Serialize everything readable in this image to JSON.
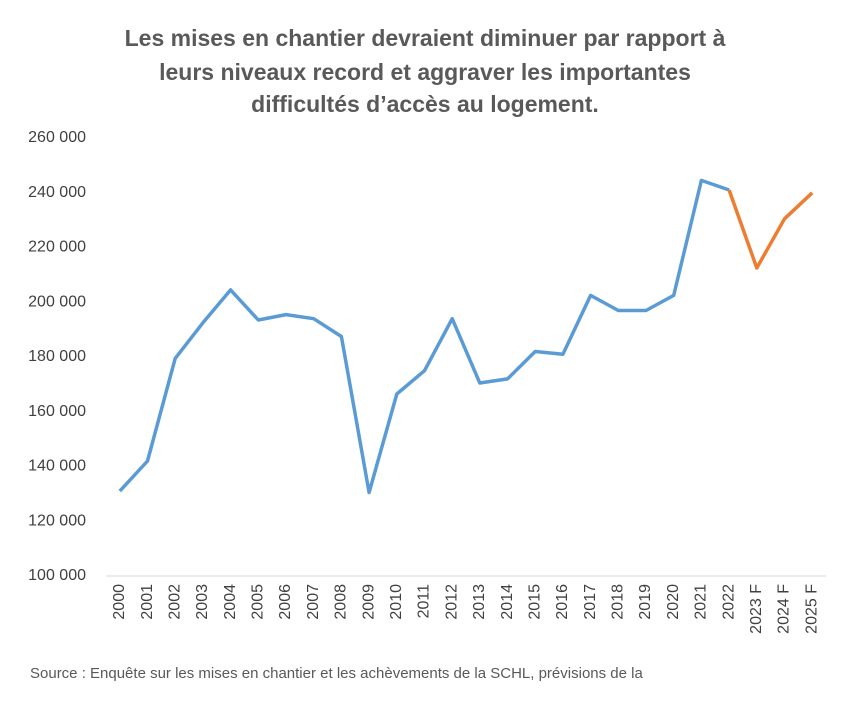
{
  "chart_data": {
    "type": "line",
    "title_lines": [
      "Les mises en chantier devraient diminuer par rapport à",
      "leurs niveaux record et aggraver les importantes",
      "difficultés d’accès au logement."
    ],
    "source": "Source : Enquête sur les mises en chantier et les achèvements de la SCHL, prévisions de la",
    "categories": [
      "2000",
      "2001",
      "2002",
      "2003",
      "2004",
      "2005",
      "2006",
      "2007",
      "2008",
      "2009",
      "2010",
      "2011",
      "2012",
      "2013",
      "2014",
      "2015",
      "2016",
      "2017",
      "2018",
      "2019",
      "2020",
      "2021",
      "2022",
      "2023 F",
      "2024 F",
      "2025 F"
    ],
    "series": [
      {
        "color": "#5b9bd5",
        "values": [
          131000,
          142000,
          179500,
          192500,
          204500,
          193500,
          195500,
          194000,
          187500,
          130500,
          166500,
          175000,
          194000,
          170500,
          172000,
          182000,
          181000,
          202500,
          197000,
          197000,
          202500,
          244500,
          241000,
          null,
          null,
          null
        ]
      },
      {
        "color": "#ed7d31",
        "values": [
          null,
          null,
          null,
          null,
          null,
          null,
          null,
          null,
          null,
          null,
          null,
          null,
          null,
          null,
          null,
          null,
          null,
          null,
          null,
          null,
          null,
          null,
          241000,
          212500,
          230500,
          240000
        ]
      }
    ],
    "ylim": [
      100000,
      260000
    ],
    "yticks": [
      {
        "value": 100000,
        "label": "100 000"
      },
      {
        "value": 120000,
        "label": "120 000"
      },
      {
        "value": 140000,
        "label": "140 000"
      },
      {
        "value": 160000,
        "label": "160 000"
      },
      {
        "value": 180000,
        "label": "180 000"
      },
      {
        "value": 200000,
        "label": "200 000"
      },
      {
        "value": 220000,
        "label": "220 000"
      },
      {
        "value": 240000,
        "label": "240 000"
      },
      {
        "value": 260000,
        "label": "260 000"
      }
    ],
    "grid": false
  }
}
